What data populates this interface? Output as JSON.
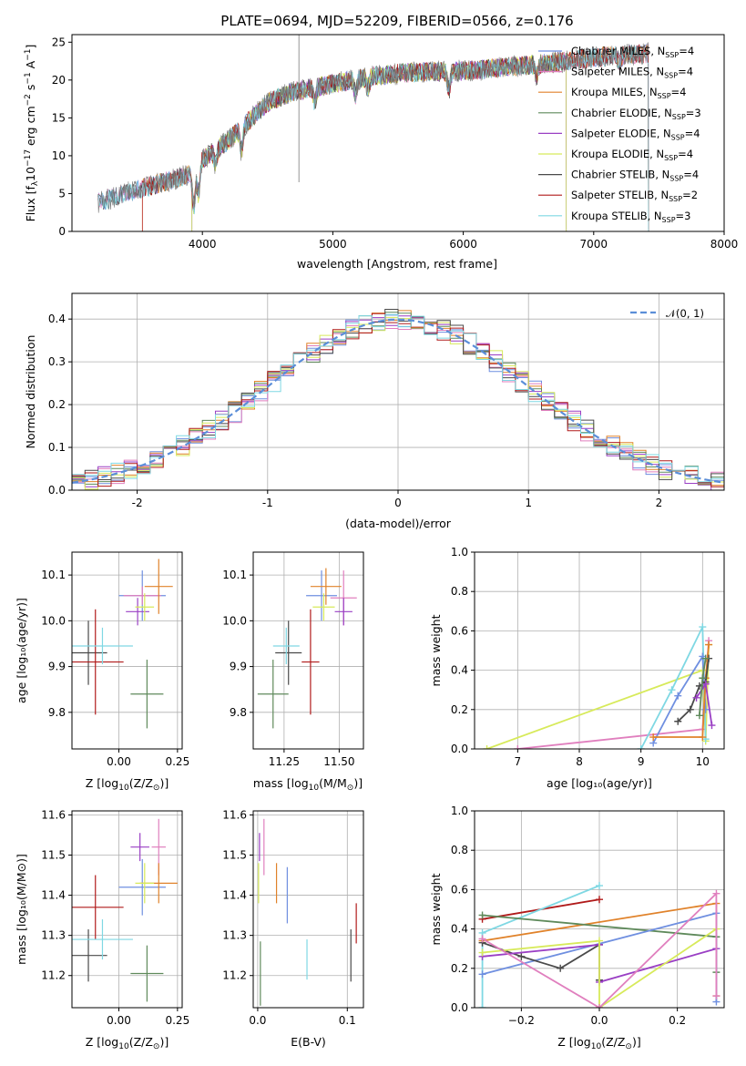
{
  "colors": {
    "chabrier_miles": "#6f8fe0",
    "salpeter_miles": "#e07fbe",
    "kroupa_miles": "#e0822a",
    "chabrier_elodie": "#5f8a5b",
    "salpeter_elodie": "#9a3fc4",
    "kroupa_elodie": "#d7ea5a",
    "chabrier_stelib": "#4a4a4a",
    "salpeter_stelib": "#b01a1a",
    "kroupa_stelib": "#7fd8e3",
    "normal": "#5b8ed8"
  },
  "chart_data": [
    {
      "id": "spectrum",
      "type": "line",
      "title": "PLATE=0694, MJD=52209, FIBERID=0566, z=0.176",
      "xlabel": "wavelength [Angstrom, rest frame]",
      "ylabel_main": "Flux [f",
      "ylabel_sub": "λ",
      "ylabel_rest": "10",
      "ylabel_exp": "−17",
      "ylabel_units": " erg cm",
      "ylabel_exp2": "−2",
      "ylabel_s": " s",
      "ylabel_exp3": "−1",
      "ylabel_a": " A",
      "ylabel_exp4": "−1",
      "ylabel_close": "]",
      "xlim": [
        3000,
        8000
      ],
      "ylim": [
        0,
        26
      ],
      "xticks": [
        4000,
        5000,
        6000,
        7000,
        8000
      ],
      "yticks": [
        0,
        5,
        10,
        15,
        20,
        25
      ],
      "continuum": [
        [
          3200,
          3.8
        ],
        [
          3500,
          5.5
        ],
        [
          3700,
          6.5
        ],
        [
          3900,
          7.5
        ],
        [
          4000,
          9.5
        ],
        [
          4200,
          12.0
        ],
        [
          4350,
          14.5
        ],
        [
          4500,
          17.0
        ],
        [
          4700,
          18.5
        ],
        [
          5000,
          19.5
        ],
        [
          5300,
          20.5
        ],
        [
          5600,
          21.0
        ],
        [
          6000,
          21.2
        ],
        [
          6400,
          21.8
        ],
        [
          6800,
          22.5
        ],
        [
          7000,
          23.0
        ],
        [
          7200,
          23.3
        ],
        [
          7420,
          23.5
        ]
      ],
      "legend_entries": [
        {
          "label": "Chabrier MILES, N",
          "sub": "SSP",
          "val": "=4",
          "color": "chabrier_miles",
          "range": [
            3200,
            7420
          ]
        },
        {
          "label": "Salpeter MILES, N",
          "sub": "SSP",
          "val": "=4",
          "color": "salpeter_miles",
          "range": [
            3200,
            7420
          ]
        },
        {
          "label": "Kroupa MILES, N",
          "sub": "SSP",
          "val": "=4",
          "color": "kroupa_miles",
          "range": [
            3540,
            7420
          ]
        },
        {
          "label": "Chabrier ELODIE, N",
          "sub": "SSP",
          "val": "=3",
          "color": "chabrier_elodie",
          "range": [
            3920,
            6790
          ]
        },
        {
          "label": "Salpeter ELODIE, N",
          "sub": "SSP",
          "val": "=4",
          "color": "salpeter_elodie",
          "range": [
            3920,
            6790
          ]
        },
        {
          "label": "Kroupa ELODIE, N",
          "sub": "SSP",
          "val": "=4",
          "color": "kroupa_elodie",
          "range": [
            3920,
            6790
          ]
        },
        {
          "label": "Chabrier STELIB, N",
          "sub": "SSP",
          "val": "=4",
          "color": "chabrier_stelib",
          "range": [
            3200,
            7420
          ]
        },
        {
          "label": "Salpeter STELIB, N",
          "sub": "SSP",
          "val": "=2",
          "color": "salpeter_stelib",
          "range": [
            3540,
            7420
          ]
        },
        {
          "label": "Kroupa STELIB, N",
          "sub": "SSP",
          "val": "=3",
          "color": "kroupa_stelib",
          "range": [
            3200,
            7420
          ]
        }
      ]
    },
    {
      "id": "residuals",
      "type": "step",
      "xlabel": "(data-model)/error",
      "ylabel": "Normed distribution",
      "xlim": [
        -2.5,
        2.5
      ],
      "ylim": [
        0,
        0.46
      ],
      "xticks": [
        -2,
        -1,
        0,
        1,
        2
      ],
      "yticks": [
        0.0,
        0.1,
        0.2,
        0.3,
        0.4
      ],
      "ytick_labels": [
        "0.0",
        "0.1",
        "0.2",
        "0.3",
        "0.4"
      ],
      "bin_width": 0.1,
      "legend_label": "𝒩(0, 1)"
    },
    {
      "id": "age_vs_Z",
      "type": "scatter",
      "xlabel": "Z [log",
      "xlabel_sub": "10",
      "xlabel_rest": "(Z/Z",
      "xlabel_sub2": "⊙",
      "xlabel_close": ")]",
      "ylabel": "age  [log₁₀(age/yr)]",
      "xlim": [
        -0.2,
        0.27
      ],
      "ylim": [
        9.72,
        10.15
      ],
      "xticks": [
        0.0,
        0.25
      ],
      "xtick_labels": [
        "0.00",
        "0.25"
      ],
      "yticks": [
        9.8,
        9.9,
        10.0,
        10.1
      ],
      "ytick_labels": [
        "9.8",
        "9.9",
        "10.0",
        "10.1"
      ],
      "points": [
        {
          "color": "chabrier_miles",
          "x": 0.1,
          "xerr": 0.1,
          "y": 10.055,
          "yerr": 0.055
        },
        {
          "color": "salpeter_miles",
          "x": 0.1,
          "xerr": 0.08,
          "y": 10.055,
          "yerr": 0.02
        },
        {
          "color": "kroupa_miles",
          "x": 0.17,
          "xerr": 0.06,
          "y": 10.075,
          "yerr": 0.06
        },
        {
          "color": "chabrier_elodie",
          "x": 0.12,
          "xerr": 0.07,
          "y": 9.84,
          "yerr": 0.075
        },
        {
          "color": "salpeter_elodie",
          "x": 0.08,
          "xerr": 0.05,
          "y": 10.02,
          "yerr": 0.03
        },
        {
          "color": "kroupa_elodie",
          "x": 0.11,
          "xerr": 0.04,
          "y": 10.03,
          "yerr": 0.03
        },
        {
          "color": "chabrier_stelib",
          "x": -0.13,
          "xerr": 0.08,
          "y": 9.93,
          "yerr": 0.07
        },
        {
          "color": "salpeter_stelib",
          "x": -0.1,
          "xerr": 0.12,
          "y": 9.91,
          "yerr": 0.115
        },
        {
          "color": "kroupa_stelib",
          "x": -0.07,
          "xerr": 0.13,
          "y": 9.945,
          "yerr": 0.04
        }
      ]
    },
    {
      "id": "age_vs_mass",
      "type": "scatter",
      "xlabel": "mass [log",
      "xlabel_sub": "10",
      "xlabel_rest": "(M/M",
      "xlabel_sub2": "⊙",
      "xlabel_close": ")]",
      "xlim": [
        11.11,
        11.61
      ],
      "ylim": [
        9.72,
        10.15
      ],
      "xticks": [
        11.25,
        11.5
      ],
      "xtick_labels": [
        "11.25",
        "11.50"
      ],
      "yticks": [
        9.8,
        9.9,
        10.0,
        10.1
      ],
      "ytick_labels": [
        "9.8",
        "9.9",
        "10.0",
        "10.1"
      ],
      "points": [
        {
          "color": "chabrier_miles",
          "x": 11.42,
          "xerr": 0.07,
          "y": 10.055,
          "yerr": 0.055
        },
        {
          "color": "salpeter_miles",
          "x": 11.52,
          "xerr": 0.06,
          "y": 10.05,
          "yerr": 0.06
        },
        {
          "color": "kroupa_miles",
          "x": 11.44,
          "xerr": 0.07,
          "y": 10.075,
          "yerr": 0.04
        },
        {
          "color": "chabrier_elodie",
          "x": 11.2,
          "xerr": 0.07,
          "y": 9.84,
          "yerr": 0.075
        },
        {
          "color": "salpeter_elodie",
          "x": 11.52,
          "xerr": 0.04,
          "y": 10.02,
          "yerr": 0.03
        },
        {
          "color": "kroupa_elodie",
          "x": 11.43,
          "xerr": 0.05,
          "y": 10.03,
          "yerr": 0.03
        },
        {
          "color": "chabrier_stelib",
          "x": 11.27,
          "xerr": 0.06,
          "y": 9.93,
          "yerr": 0.07
        },
        {
          "color": "salpeter_stelib",
          "x": 11.37,
          "xerr": 0.04,
          "y": 9.91,
          "yerr": 0.115
        },
        {
          "color": "kroupa_stelib",
          "x": 11.26,
          "xerr": 0.06,
          "y": 9.945,
          "yerr": 0.04
        }
      ]
    },
    {
      "id": "mass_weight_vs_age",
      "type": "line",
      "xlabel": "age  [log₁₀(age/yr)]",
      "ylabel": "mass weight",
      "xlim": [
        6.3,
        10.35
      ],
      "ylim": [
        0,
        1.0
      ],
      "xticks": [
        7,
        8,
        9,
        10
      ],
      "yticks": [
        0.0,
        0.2,
        0.4,
        0.6,
        0.8,
        1.0
      ],
      "ytick_labels": [
        "0.0",
        "0.2",
        "0.4",
        "0.6",
        "0.8",
        "1.0"
      ],
      "series": [
        {
          "color": "kroupa_elodie",
          "points": [
            [
              6.5,
              0.0
            ],
            [
              10.0,
              0.4
            ],
            [
              10.05,
              0.04
            ],
            [
              10.1,
              0.53
            ]
          ]
        },
        {
          "color": "salpeter_miles",
          "points": [
            [
              7.0,
              0.0
            ],
            [
              10.0,
              0.1
            ],
            [
              10.05,
              0.33
            ],
            [
              10.1,
              0.55
            ]
          ]
        },
        {
          "color": "kroupa_stelib",
          "points": [
            [
              9.0,
              0.0
            ],
            [
              9.5,
              0.3
            ],
            [
              10.0,
              0.62
            ],
            [
              10.05,
              0.05
            ]
          ]
        },
        {
          "color": "chabrier_miles",
          "points": [
            [
              9.2,
              0.03
            ],
            [
              9.6,
              0.27
            ],
            [
              10.0,
              0.47
            ],
            [
              10.05,
              0.2
            ]
          ]
        },
        {
          "color": "kroupa_miles",
          "points": [
            [
              9.2,
              0.06
            ],
            [
              10.0,
              0.06
            ],
            [
              10.05,
              0.36
            ],
            [
              10.1,
              0.53
            ]
          ]
        },
        {
          "color": "chabrier_stelib",
          "points": [
            [
              9.6,
              0.14
            ],
            [
              9.8,
              0.2
            ],
            [
              9.95,
              0.32
            ],
            [
              10.05,
              0.34
            ],
            [
              10.1,
              0.46
            ]
          ]
        },
        {
          "color": "salpeter_elodie",
          "points": [
            [
              9.9,
              0.26
            ],
            [
              10.05,
              0.33
            ],
            [
              10.15,
              0.12
            ]
          ]
        },
        {
          "color": "chabrier_elodie",
          "points": [
            [
              9.95,
              0.17
            ],
            [
              10.0,
              0.36
            ],
            [
              10.05,
              0.46
            ]
          ]
        }
      ]
    },
    {
      "id": "mass_vs_Z",
      "type": "scatter",
      "xlabel": "Z [log",
      "xlabel_sub": "10",
      "xlabel_rest": "(Z/Z",
      "xlabel_sub2": "⊙",
      "xlabel_close": ")]",
      "ylabel": "mass [log₁₀(M/M⊙)]",
      "xlim": [
        -0.2,
        0.27
      ],
      "ylim": [
        11.12,
        11.61
      ],
      "xticks": [
        0.0,
        0.25
      ],
      "xtick_labels": [
        "0.00",
        "0.25"
      ],
      "yticks": [
        11.2,
        11.3,
        11.4,
        11.5,
        11.6
      ],
      "ytick_labels": [
        "11.2",
        "11.3",
        "11.4",
        "11.5",
        "11.6"
      ],
      "points": [
        {
          "color": "chabrier_miles",
          "x": 0.1,
          "xerr": 0.1,
          "y": 11.42,
          "yerr": 0.07
        },
        {
          "color": "salpeter_miles",
          "x": 0.17,
          "xerr": 0.03,
          "y": 11.52,
          "yerr": 0.07
        },
        {
          "color": "kroupa_miles",
          "x": 0.17,
          "xerr": 0.08,
          "y": 11.43,
          "yerr": 0.05
        },
        {
          "color": "chabrier_elodie",
          "x": 0.12,
          "xerr": 0.07,
          "y": 11.205,
          "yerr": 0.07
        },
        {
          "color": "salpeter_elodie",
          "x": 0.09,
          "xerr": 0.04,
          "y": 11.52,
          "yerr": 0.035
        },
        {
          "color": "kroupa_elodie",
          "x": 0.11,
          "xerr": 0.04,
          "y": 11.43,
          "yerr": 0.05
        },
        {
          "color": "chabrier_stelib",
          "x": -0.13,
          "xerr": 0.08,
          "y": 11.25,
          "yerr": 0.065
        },
        {
          "color": "salpeter_stelib",
          "x": -0.1,
          "xerr": 0.12,
          "y": 11.37,
          "yerr": 0.08
        },
        {
          "color": "kroupa_stelib",
          "x": -0.07,
          "xerr": 0.13,
          "y": 11.29,
          "yerr": 0.05
        }
      ]
    },
    {
      "id": "mass_vs_ebv",
      "type": "scatter",
      "xlabel": "E(B-V)",
      "xlim": [
        -0.005,
        0.118
      ],
      "ylim": [
        11.12,
        11.61
      ],
      "xticks": [
        0.0,
        0.1
      ],
      "xtick_labels": [
        "0.0",
        "0.1"
      ],
      "yticks": [
        11.2,
        11.3,
        11.4,
        11.5,
        11.6
      ],
      "ytick_labels": [
        "11.2",
        "11.3",
        "11.4",
        "11.5",
        "11.6"
      ],
      "points": [
        {
          "color": "chabrier_miles",
          "x": 0.033,
          "xerr": 0.0,
          "y": 11.4,
          "yerr": 0.07
        },
        {
          "color": "salpeter_miles",
          "x": 0.007,
          "xerr": 0.0,
          "y": 11.52,
          "yerr": 0.07
        },
        {
          "color": "kroupa_miles",
          "x": 0.021,
          "xerr": 0.0,
          "y": 11.43,
          "yerr": 0.05
        },
        {
          "color": "chabrier_elodie",
          "x": 0.003,
          "xerr": 0.0,
          "y": 11.205,
          "yerr": 0.08
        },
        {
          "color": "salpeter_elodie",
          "x": 0.002,
          "xerr": 0.0,
          "y": 11.52,
          "yerr": 0.035
        },
        {
          "color": "kroupa_elodie",
          "x": 0.001,
          "xerr": 0.0,
          "y": 11.43,
          "yerr": 0.05
        },
        {
          "color": "chabrier_stelib",
          "x": 0.104,
          "xerr": 0.0,
          "y": 11.25,
          "yerr": 0.065
        },
        {
          "color": "salpeter_stelib",
          "x": 0.11,
          "xerr": 0.0,
          "y": 11.33,
          "yerr": 0.05
        },
        {
          "color": "kroupa_stelib",
          "x": 0.055,
          "xerr": 0.0,
          "y": 11.24,
          "yerr": 0.05
        }
      ]
    },
    {
      "id": "mass_weight_vs_Z",
      "type": "line",
      "xlabel": "Z [log",
      "xlabel_sub": "10",
      "xlabel_rest": "(Z/Z",
      "xlabel_sub2": "⊙",
      "xlabel_close": ")]",
      "ylabel": "mass weight",
      "xlim": [
        -0.32,
        0.32
      ],
      "ylim": [
        0,
        1.0
      ],
      "xticks": [
        -0.2,
        0.0,
        0.2
      ],
      "xtick_labels": [
        "−0.2",
        "0.0",
        "0.2"
      ],
      "yticks": [
        0.0,
        0.2,
        0.4,
        0.6,
        0.8,
        1.0
      ],
      "ytick_labels": [
        "0.0",
        "0.2",
        "0.4",
        "0.6",
        "0.8",
        "1.0"
      ],
      "series": [
        {
          "color": "salpeter_stelib",
          "points": [
            [
              -0.3,
              0.45
            ],
            [
              0.0,
              0.55
            ]
          ]
        },
        {
          "color": "kroupa_stelib",
          "points": [
            [
              -0.3,
              0.0
            ],
            [
              -0.3,
              0.38
            ],
            [
              0.0,
              0.62
            ]
          ]
        },
        {
          "color": "kroupa_miles",
          "points": [
            [
              -0.3,
              0.34
            ],
            [
              0.3,
              0.53
            ],
            [
              0.3,
              0.06
            ]
          ]
        },
        {
          "color": "chabrier_elodie",
          "points": [
            [
              -0.3,
              0.47
            ],
            [
              0.3,
              0.36
            ],
            [
              0.3,
              0.18
            ]
          ]
        },
        {
          "color": "chabrier_miles",
          "points": [
            [
              -0.3,
              0.17
            ],
            [
              0.3,
              0.48
            ],
            [
              0.3,
              0.03
            ]
          ]
        },
        {
          "color": "chabrier_stelib",
          "points": [
            [
              -0.3,
              0.33
            ],
            [
              -0.2,
              0.26
            ],
            [
              -0.1,
              0.2
            ],
            [
              0.0,
              0.32
            ],
            [
              0.0,
              0.14
            ]
          ]
        },
        {
          "color": "salpeter_elodie",
          "points": [
            [
              -0.3,
              0.26
            ],
            [
              0.0,
              0.32
            ],
            [
              0.0,
              0.13
            ],
            [
              0.3,
              0.3
            ]
          ]
        },
        {
          "color": "kroupa_elodie",
          "points": [
            [
              -0.3,
              0.28
            ],
            [
              0.0,
              0.34
            ],
            [
              0.0,
              0.0
            ],
            [
              0.3,
              0.4
            ]
          ]
        },
        {
          "color": "salpeter_miles",
          "points": [
            [
              -0.3,
              0.35
            ],
            [
              0.0,
              0.0
            ],
            [
              0.3,
              0.58
            ],
            [
              0.3,
              0.06
            ]
          ]
        }
      ]
    }
  ]
}
